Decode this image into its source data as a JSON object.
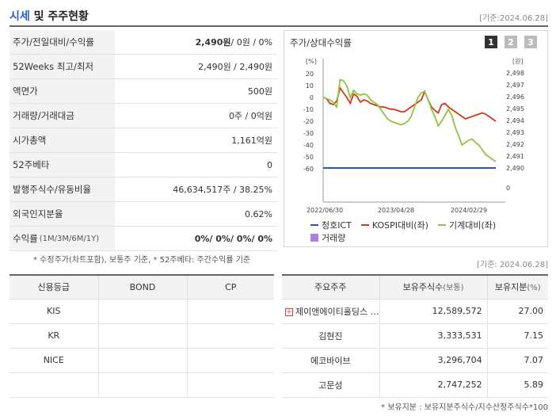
{
  "header": {
    "title_highlight": "시세",
    "title_rest": " 및 주주현황",
    "date": "[기준:2024.06.28]"
  },
  "summary": {
    "rows": [
      {
        "label": "주가/전일대비/수익률",
        "label_small": "",
        "value_bold": "2,490원",
        "value": " / 0원 / 0%"
      },
      {
        "label": "52Weeks 최고/최저",
        "label_small": "",
        "value_bold": "",
        "value": "2,490원 / 2,490원"
      },
      {
        "label": "액면가",
        "label_small": "",
        "value_bold": "",
        "value": "500원"
      },
      {
        "label": "거래량/거래대금",
        "label_small": "",
        "value_bold": "",
        "value": "0주 / 0억원"
      },
      {
        "label": "시가총액",
        "label_small": "",
        "value_bold": "",
        "value": "1,161억원"
      },
      {
        "label": "52주베타",
        "label_small": "",
        "value_bold": "",
        "value": "0"
      },
      {
        "label": "발행주식수/유동비율",
        "label_small": "",
        "value_bold": "",
        "value": "46,634,517주 / 38.25%"
      },
      {
        "label": "외국인지분율",
        "label_small": "",
        "value_bold": "",
        "value": "0.62%"
      },
      {
        "label": "수익률",
        "label_small": "(1M/3M/6M/1Y)",
        "value_bold": "0%/ 0%/ 0%/ 0%",
        "value": ""
      }
    ],
    "footnote": "* 수정주가(차트포함), 보통주 기준, * 52주베타: 주간수익률 기준"
  },
  "chart": {
    "title": "주가/상대수익률",
    "pages": [
      "1",
      "2",
      "3"
    ],
    "left_unit": "[%]",
    "right_unit": "[원]",
    "legend": [
      {
        "name": "청호ICT",
        "color": "#2a4fd0",
        "kind": "line"
      },
      {
        "name": "KOSPI대비(좌)",
        "color": "#d33a1a",
        "kind": "line"
      },
      {
        "name": "기계대비(좌)",
        "color": "#8cc63e",
        "kind": "line"
      },
      {
        "name": "거래량",
        "color": "#b07fe0",
        "kind": "box"
      }
    ]
  },
  "chart_data": {
    "type": "line",
    "x_ticks": [
      "2022/06/30",
      "2023/04/28",
      "2024/02/29"
    ],
    "y_left_ticks": [
      "20",
      "10",
      "0",
      "-10",
      "-20",
      "-30",
      "-40",
      "-50",
      "-60"
    ],
    "y_right_ticks": [
      "2,498",
      "2,497",
      "2,496",
      "2,495",
      "2,494",
      "2,493",
      "2,492",
      "2,491",
      "2,490",
      "0"
    ],
    "ylim_left": [
      -60,
      20
    ],
    "series": [
      {
        "name": "청호ICT",
        "axis": "right",
        "values": [
          2490,
          2490,
          2490,
          2490,
          2490,
          2490,
          2490,
          2490,
          2490,
          2490,
          2490,
          2490,
          2490,
          2490,
          2490,
          2490,
          2490,
          2490,
          2490,
          2490,
          2490,
          2490,
          2490,
          2490,
          2490,
          2490,
          2490,
          2490,
          2490,
          2490,
          2490,
          2490,
          2490,
          2490,
          2490,
          2490,
          2490,
          2490,
          2490,
          2490,
          2490,
          2490,
          2490,
          2490,
          2490,
          2490,
          2490,
          2490,
          2490,
          2490,
          2490,
          2490
        ]
      },
      {
        "name": "KOSPI대비(좌)",
        "axis": "left",
        "values": [
          0,
          -1,
          -5,
          -6,
          -3,
          8,
          4,
          0,
          -5,
          3,
          1,
          -4,
          -2,
          -3,
          -5,
          -6,
          -7,
          -8,
          -8,
          -9,
          -10,
          -10,
          -11,
          -12,
          -12,
          -10,
          -8,
          -6,
          -4,
          -2,
          5,
          -2,
          -8,
          -11,
          -13,
          -6,
          -5,
          -8,
          -10,
          -12,
          -14,
          -16,
          -18,
          -17,
          -16,
          -15,
          -14,
          -13,
          -14,
          -16,
          -18,
          -20
        ]
      },
      {
        "name": "기계대비(좌)",
        "axis": "left",
        "values": [
          0,
          -1,
          -2,
          -4,
          -8,
          15,
          14,
          10,
          0,
          6,
          3,
          2,
          3,
          2,
          -2,
          -4,
          -6,
          -10,
          -14,
          -18,
          -20,
          -21,
          -22,
          -23,
          -22,
          -20,
          -16,
          -8,
          0,
          4,
          5,
          -2,
          -10,
          -16,
          -24,
          -20,
          -15,
          -10,
          -15,
          -25,
          -32,
          -40,
          -38,
          -36,
          -35,
          -38,
          -40,
          -44,
          -48,
          -50,
          -52,
          -54
        ]
      }
    ]
  },
  "credit": {
    "date": "[기준: 2024.06.28]",
    "headers": [
      "신용등급",
      "BOND",
      "CP"
    ],
    "rows": [
      [
        "KIS",
        "",
        ""
      ],
      [
        "KR",
        "",
        ""
      ],
      [
        "NICE",
        "",
        ""
      ],
      [
        "",
        "",
        ""
      ]
    ]
  },
  "shareholders": {
    "headers": [
      "주요주주",
      "보유주식수",
      "(보통)",
      "보유지분",
      "(%)"
    ],
    "rows": [
      {
        "name": "제이앤에이티홀딩스 …",
        "shares": "12,589,572",
        "pct": "27.00",
        "expand": "+"
      },
      {
        "name": "김현진",
        "shares": "3,333,531",
        "pct": "7.15",
        "expand": ""
      },
      {
        "name": "에코바이브",
        "shares": "3,296,704",
        "pct": "7.07",
        "expand": ""
      },
      {
        "name": "고문성",
        "shares": "2,747,252",
        "pct": "5.89",
        "expand": ""
      }
    ],
    "footnote": "* 보유지분 : 보유지분주식수/지수산정주식수*100"
  }
}
